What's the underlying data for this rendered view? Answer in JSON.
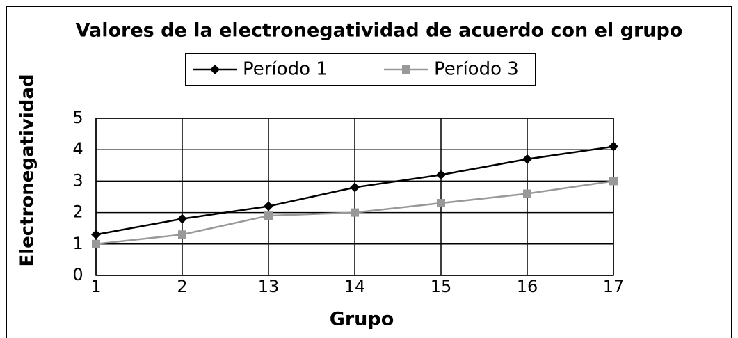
{
  "chart_data": {
    "type": "line",
    "title": "Valores de la electronegatividad de acuerdo con el grupo",
    "x_label": "Grupo",
    "y_label": "Electronegatividad",
    "categories": [
      "1",
      "2",
      "13",
      "14",
      "15",
      "16",
      "17"
    ],
    "series": [
      {
        "name": "Período 1",
        "color": "#000000",
        "marker": "diamond",
        "values": [
          1.3,
          1.8,
          2.2,
          2.8,
          3.2,
          3.7,
          4.1
        ]
      },
      {
        "name": "Período 3",
        "color": "#999999",
        "marker": "square",
        "values": [
          1.0,
          1.3,
          1.9,
          2.0,
          2.3,
          2.6,
          3.0
        ]
      }
    ],
    "ylim": [
      0,
      5
    ],
    "yticks": [
      0,
      1,
      2,
      3,
      4,
      5
    ],
    "grid": true,
    "legend": "top"
  }
}
